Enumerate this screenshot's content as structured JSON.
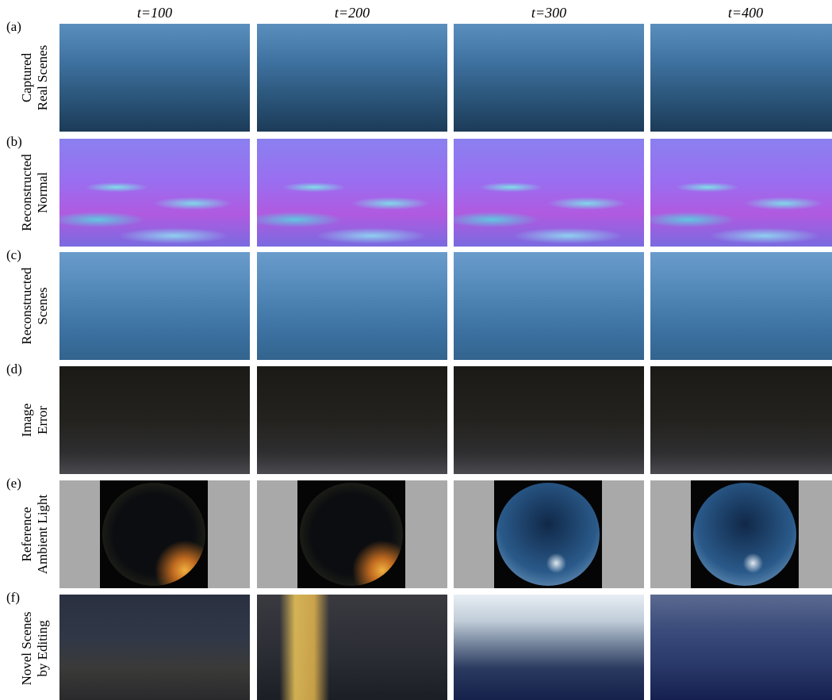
{
  "columns": [
    "t=100",
    "t=200",
    "t=300",
    "t=400"
  ],
  "rows": [
    {
      "label": "(a)",
      "title": [
        "Captured",
        "Real Scenes"
      ]
    },
    {
      "label": "(b)",
      "title": [
        "Reconstructed",
        "Normal"
      ]
    },
    {
      "label": "(c)",
      "title": [
        "Reconstructed",
        "Scenes"
      ]
    },
    {
      "label": "(d)",
      "title": [
        "Image",
        "Error"
      ]
    },
    {
      "label": "(e)",
      "title": [
        "Reference",
        "Ambient Light"
      ]
    },
    {
      "label": "(f)",
      "title": [
        "Novel Scenes",
        "by Editing"
      ]
    }
  ]
}
